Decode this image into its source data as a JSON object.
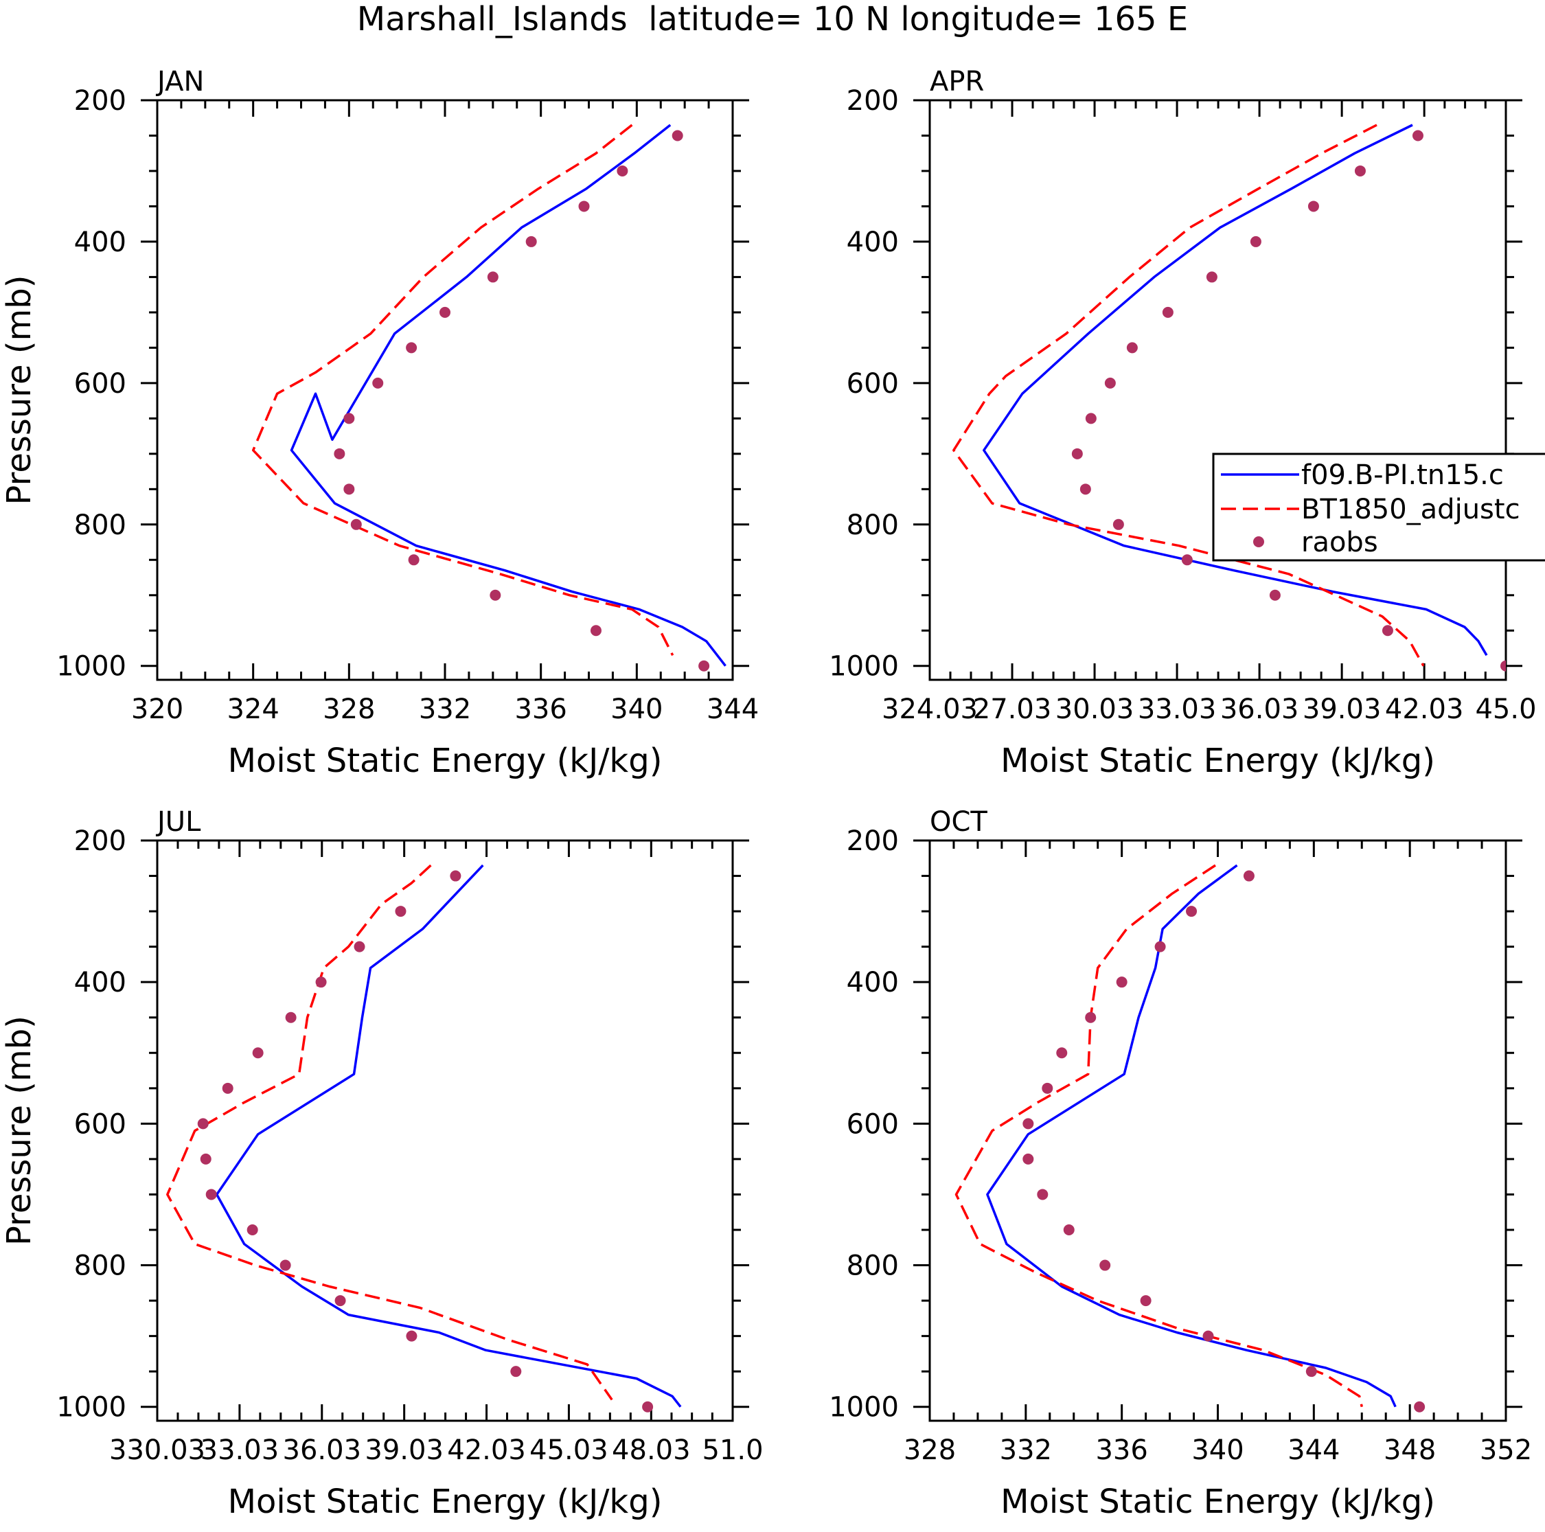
{
  "figure": {
    "title": "Marshall_Islands  latitude= 10 N longitude= 165 E"
  },
  "colors": {
    "model": "#0000ff",
    "adjusted": "#ff0000",
    "raobs": "#b03060",
    "axis": "#000000"
  },
  "chart_data": [
    {
      "type": "line",
      "panel": "JAN",
      "xlabel": "Moist Static Energy (kJ/kg)",
      "ylabel": "Pressure (mb)",
      "xlim": [
        320,
        344
      ],
      "ylim": [
        1000,
        200
      ],
      "xticks": [
        320,
        324,
        328,
        332,
        336,
        340,
        344
      ],
      "xtick_labels": [
        "320",
        "324",
        "328",
        "332",
        "336",
        "340",
        "344"
      ],
      "yticks": [
        1000,
        800,
        600,
        400,
        200
      ],
      "ytick_labels": [
        "1000",
        "800",
        "600",
        "400",
        "200"
      ],
      "legend": null,
      "series": [
        {
          "name": "f09.B-PI.tn15.c",
          "style": "solid",
          "x": [
            341.4,
            339.9,
            337.9,
            335.2,
            332.9,
            329.9,
            327.3,
            326.6,
            325.6,
            327.4,
            330.8,
            334.5,
            337.3,
            340.1,
            341.9,
            342.9,
            343.7
          ],
          "y": [
            235,
            275,
            325,
            380,
            450,
            530,
            680,
            615,
            695,
            770,
            830,
            865,
            895,
            920,
            945,
            965,
            1000
          ]
        },
        {
          "name": "BT1850_adjustc",
          "style": "dashed",
          "x": [
            339.8,
            338.3,
            335.9,
            333.5,
            331.1,
            328.9,
            326.6,
            325.0,
            324.0,
            326.1,
            330.1,
            334.3,
            337.2,
            339.8,
            340.9,
            341.5
          ],
          "y": [
            235,
            275,
            325,
            380,
            450,
            530,
            585,
            615,
            695,
            770,
            830,
            870,
            900,
            920,
            945,
            985
          ]
        },
        {
          "name": "raobs",
          "style": "dots",
          "x": [
            341.7,
            339.4,
            337.8,
            335.6,
            334.0,
            332.0,
            330.6,
            329.2,
            328.0,
            327.6,
            328.0,
            328.3,
            330.7,
            334.1,
            338.3,
            342.8
          ],
          "y": [
            250,
            300,
            350,
            400,
            450,
            500,
            550,
            600,
            650,
            700,
            750,
            800,
            850,
            900,
            950,
            1000
          ]
        }
      ]
    },
    {
      "type": "line",
      "panel": "APR",
      "xlabel": "Moist Static Energy (kJ/kg)",
      "ylabel": "",
      "xlim": [
        324.03,
        345.0
      ],
      "ylim": [
        1000,
        200
      ],
      "xticks": [
        324.03,
        327.03,
        330.03,
        333.03,
        336.03,
        339.03,
        342.03,
        345.0
      ],
      "xtick_labels": [
        "324.03",
        "27.03",
        "30.03",
        "33.03",
        "36.03",
        "39.03",
        "42.03",
        "45.0"
      ],
      "yticks": [
        1000,
        800,
        600,
        400,
        200
      ],
      "ytick_labels": [
        "1000",
        "800",
        "600",
        "400",
        "200"
      ],
      "legend": {
        "placement": "right",
        "entries": [
          "f09.B-PI.tn15.c",
          "BT1850_adjustc",
          "raobs"
        ]
      },
      "series": [
        {
          "name": "f09.B-PI.tn15.c",
          "style": "solid",
          "x": [
            341.6,
            339.5,
            337.2,
            334.6,
            332.2,
            329.8,
            327.4,
            326.0,
            327.3,
            331.1,
            335.1,
            338.7,
            342.1,
            343.5,
            344.0,
            344.3
          ],
          "y": [
            235,
            275,
            325,
            380,
            450,
            530,
            615,
            695,
            770,
            830,
            865,
            895,
            920,
            945,
            965,
            985
          ]
        },
        {
          "name": "BT1850_adjustc",
          "style": "dashed",
          "x": [
            340.3,
            338.3,
            336.0,
            333.5,
            331.3,
            329.0,
            326.8,
            326.2,
            324.9,
            326.3,
            329.1,
            333.1,
            337.1,
            340.5,
            341.5,
            342.0
          ],
          "y": [
            235,
            275,
            325,
            380,
            450,
            530,
            590,
            615,
            695,
            770,
            800,
            830,
            870,
            930,
            965,
            1000
          ]
        },
        {
          "name": "raobs",
          "style": "dots",
          "x": [
            341.8,
            339.7,
            338.0,
            335.9,
            334.3,
            332.7,
            331.4,
            330.6,
            329.9,
            329.4,
            329.7,
            330.9,
            333.4,
            336.6,
            340.7,
            345.0
          ],
          "y": [
            250,
            300,
            350,
            400,
            450,
            500,
            550,
            600,
            650,
            700,
            750,
            800,
            850,
            900,
            950,
            1000
          ]
        }
      ]
    },
    {
      "type": "line",
      "panel": "JUL",
      "xlabel": "Moist Static Energy (kJ/kg)",
      "ylabel": "Pressure (mb)",
      "xlim": [
        330.03,
        351.0
      ],
      "ylim": [
        1000,
        200
      ],
      "xticks": [
        330.03,
        333.03,
        336.03,
        339.03,
        342.03,
        345.03,
        348.03,
        351.0
      ],
      "xtick_labels": [
        "330.03",
        "33.03",
        "36.03",
        "39.03",
        "42.03",
        "45.03",
        "48.03",
        "51.0"
      ],
      "yticks": [
        1000,
        800,
        600,
        400,
        200
      ],
      "ytick_labels": [
        "1000",
        "800",
        "600",
        "400",
        "200"
      ],
      "legend": null,
      "series": [
        {
          "name": "f09.B-PI.tn15.c",
          "style": "solid",
          "x": [
            341.9,
            339.7,
            337.8,
            337.5,
            337.2,
            333.7,
            332.2,
            333.2,
            335.3,
            337.0,
            340.3,
            342.0,
            347.5,
            348.8,
            349.1
          ],
          "y": [
            235,
            325,
            380,
            450,
            530,
            615,
            700,
            770,
            830,
            870,
            895,
            920,
            960,
            985,
            1000
          ]
        },
        {
          "name": "BT1850_adjustc",
          "style": "dashed",
          "x": [
            340.0,
            339.3,
            338.2,
            337.0,
            336.1,
            335.5,
            335.2,
            333.2,
            331.4,
            330.4,
            331.4,
            333.6,
            336.3,
            339.6,
            342.8,
            345.7,
            346.6
          ],
          "y": [
            235,
            260,
            290,
            350,
            380,
            450,
            530,
            570,
            610,
            700,
            770,
            800,
            830,
            860,
            905,
            940,
            990
          ]
        },
        {
          "name": "raobs",
          "style": "dots",
          "x": [
            340.9,
            338.9,
            337.4,
            336.0,
            334.9,
            333.7,
            332.6,
            331.7,
            331.8,
            332.0,
            333.5,
            334.7,
            336.7,
            339.3,
            343.1,
            347.9
          ],
          "y": [
            250,
            300,
            350,
            400,
            450,
            500,
            550,
            600,
            650,
            700,
            750,
            800,
            850,
            900,
            950,
            1000
          ]
        }
      ]
    },
    {
      "type": "line",
      "panel": "OCT",
      "xlabel": "Moist Static Energy (kJ/kg)",
      "ylabel": "",
      "xlim": [
        328,
        352
      ],
      "ylim": [
        1000,
        200
      ],
      "xticks": [
        328,
        332,
        336,
        340,
        344,
        348,
        352
      ],
      "xtick_labels": [
        "328",
        "332",
        "336",
        "340",
        "344",
        "348",
        "352"
      ],
      "yticks": [
        1000,
        800,
        600,
        400,
        200
      ],
      "ytick_labels": [
        "1000",
        "800",
        "600",
        "400",
        "200"
      ],
      "legend": null,
      "series": [
        {
          "name": "f09.B-PI.tn15.c",
          "style": "solid",
          "x": [
            340.8,
            339.2,
            337.7,
            337.4,
            336.7,
            336.1,
            332.1,
            330.4,
            331.2,
            333.5,
            335.9,
            338.3,
            341.2,
            344.5,
            346.2,
            347.2,
            347.4
          ],
          "y": [
            235,
            275,
            325,
            380,
            450,
            530,
            615,
            700,
            770,
            830,
            870,
            895,
            920,
            945,
            965,
            985,
            1000
          ]
        },
        {
          "name": "BT1850_adjustc",
          "style": "dashed",
          "x": [
            339.9,
            338.1,
            336.2,
            335.0,
            334.7,
            334.6,
            332.5,
            330.6,
            329.1,
            330.1,
            332.4,
            335.0,
            338.4,
            341.9,
            344.5,
            345.9,
            346.0
          ],
          "y": [
            235,
            275,
            325,
            380,
            450,
            530,
            570,
            610,
            700,
            770,
            810,
            850,
            890,
            920,
            955,
            985,
            1000
          ]
        },
        {
          "name": "raobs",
          "style": "dots",
          "x": [
            341.3,
            338.9,
            337.6,
            336.0,
            334.7,
            333.5,
            332.9,
            332.1,
            332.1,
            332.7,
            333.8,
            335.3,
            337.0,
            339.6,
            343.9,
            348.4
          ],
          "y": [
            250,
            300,
            350,
            400,
            450,
            500,
            550,
            600,
            650,
            700,
            750,
            800,
            850,
            900,
            950,
            1000
          ]
        }
      ]
    }
  ]
}
